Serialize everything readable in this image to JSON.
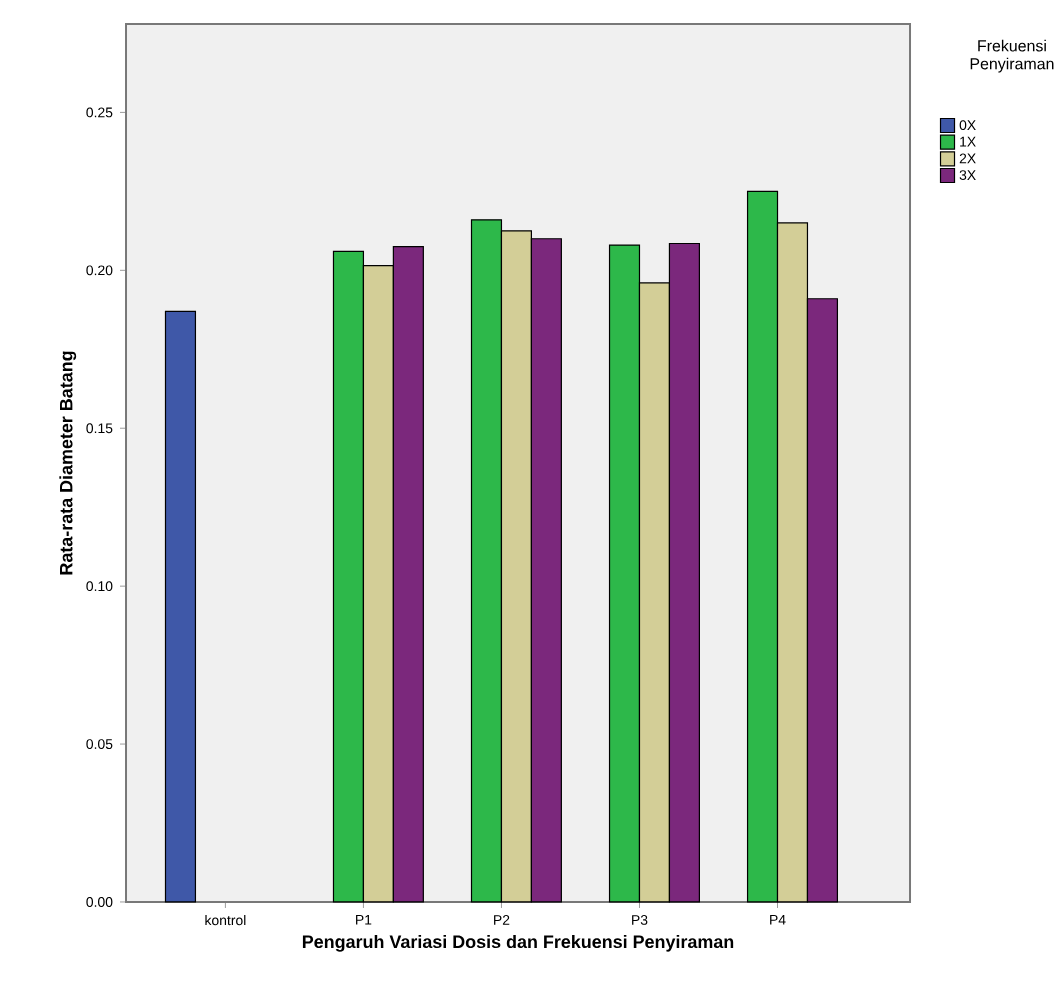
{
  "chart_data": {
    "type": "bar",
    "xlabel": "Pengaruh Variasi Dosis dan Frekuensi Penyiraman",
    "ylabel": "Rata-rata Diameter Batang",
    "legend_title": "Frekuensi Penyiraman",
    "categories": [
      "kontrol",
      "P1",
      "P2",
      "P3",
      "P4"
    ],
    "series": [
      {
        "name": "0X",
        "color": "#3f58a8",
        "values": [
          0.187,
          null,
          null,
          null,
          null
        ]
      },
      {
        "name": "1X",
        "color": "#2db84a",
        "values": [
          null,
          0.206,
          0.216,
          0.208,
          0.225
        ]
      },
      {
        "name": "2X",
        "color": "#d3ce97",
        "values": [
          null,
          0.2015,
          0.2125,
          0.196,
          0.215
        ]
      },
      {
        "name": "3X",
        "color": "#7b287c",
        "values": [
          null,
          0.2075,
          0.21,
          0.2085,
          0.191
        ]
      }
    ],
    "ylim": [
      0,
      0.278
    ],
    "yticks": [
      {
        "value": 0,
        "label": "0.00"
      },
      {
        "value": 0.05,
        "label": "0.05"
      },
      {
        "value": 0.1,
        "label": "0.10"
      },
      {
        "value": 0.15,
        "label": "0.15"
      },
      {
        "value": 0.2,
        "label": "0.20"
      },
      {
        "value": 0.25,
        "label": "0.25"
      }
    ],
    "grid": false,
    "legend": "top right"
  }
}
